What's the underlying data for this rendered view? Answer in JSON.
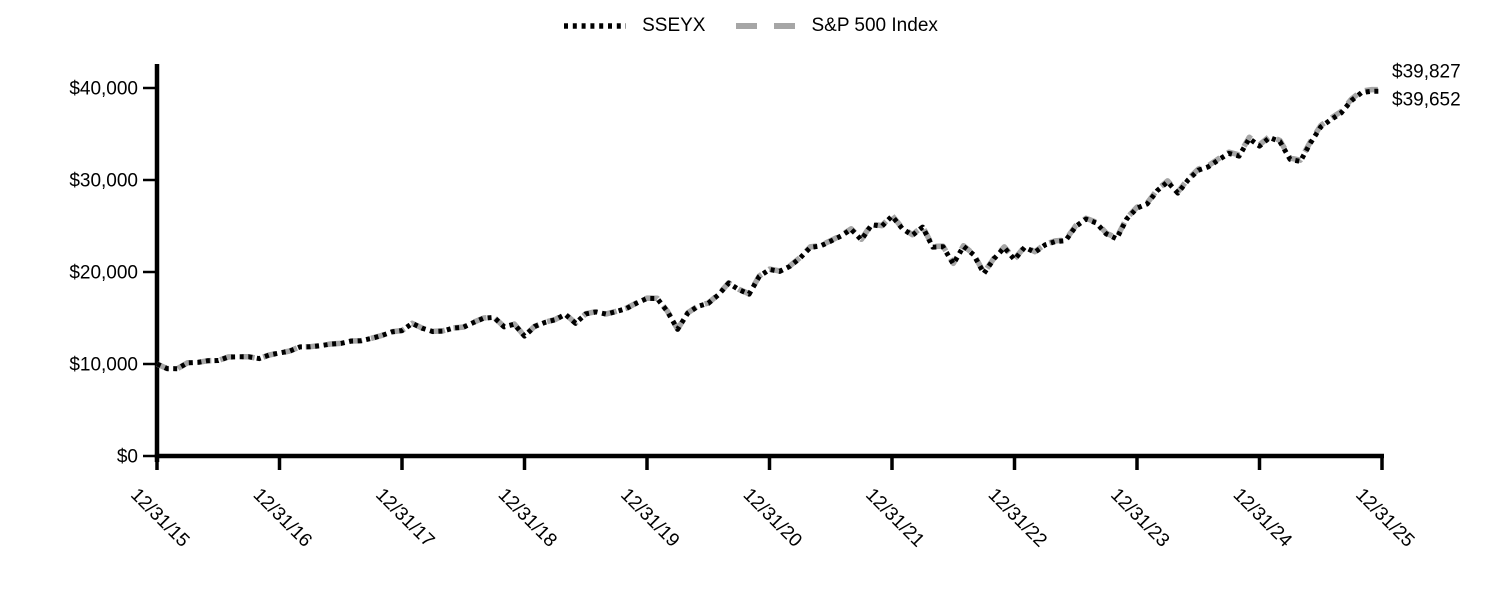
{
  "chart_data": {
    "type": "line",
    "title": "",
    "xlabel": "",
    "ylabel": "",
    "grid": false,
    "legend_position": "top-center",
    "x_unit": "monthly points from 12/31/15 to 12/31/25",
    "ylim": [
      0,
      40000
    ],
    "y_ticks": [
      0,
      10000,
      20000,
      30000,
      40000
    ],
    "y_tick_labels": [
      "$0",
      "$10,000",
      "$20,000",
      "$30,000",
      "$40,000"
    ],
    "x_tick_labels": [
      "12/31/15",
      "12/31/16",
      "12/31/17",
      "12/31/18",
      "12/31/19",
      "12/31/20",
      "12/31/21",
      "12/31/22",
      "12/31/23",
      "12/31/24",
      "12/31/25"
    ],
    "axis_color": "#000000",
    "series": [
      {
        "name": "SSEYX",
        "color": "#000000",
        "style": "dotted",
        "final_value": 39652,
        "final_value_label": "$39,652",
        "values": [
          10000,
          9504,
          9491,
          10134,
          10174,
          10356,
          10383,
          10765,
          10780,
          10781,
          10585,
          10977,
          11193,
          11406,
          11858,
          11871,
          11993,
          12161,
          12239,
          12490,
          12529,
          12786,
          13083,
          13485,
          13634,
          14415,
          13883,
          13530,
          13580,
          13907,
          13993,
          14513,
          14985,
          15070,
          14039,
          14325,
          13031,
          14074,
          14525,
          14806,
          15405,
          14426,
          15443,
          15665,
          15417,
          15705,
          16045,
          16626,
          17128,
          17120,
          15711,
          13770,
          15535,
          16274,
          16597,
          17533,
          18792,
          18078,
          17597,
          19523,
          20271,
          20066,
          20619,
          21521,
          22670,
          22828,
          23358,
          23913,
          24640,
          23493,
          25138,
          24964,
          26081,
          24732,
          23992,
          24881,
          22711,
          22751,
          20873,
          22797,
          21866,
          19851,
          21458,
          22657,
          21351,
          22691,
          22137,
          22949,
          23306,
          23406,
          24952,
          25752,
          25341,
          24132,
          23624,
          25780,
          26950,
          27401,
          28864,
          29793,
          28576,
          29992,
          31067,
          31445,
          32208,
          32896,
          32596,
          34508,
          33685,
          34620,
          34169,
          32244,
          32024,
          34038,
          35769,
          36569,
          37292,
          38629,
          39505,
          39650,
          39652
        ]
      },
      {
        "name": "S&P 500 Index",
        "color": "#a6a6a6",
        "style": "dashed",
        "final_value": 39827,
        "final_value_label": "$39,827",
        "values": [
          10000,
          9504,
          9492,
          10135,
          10175,
          10358,
          10385,
          10768,
          10783,
          10785,
          10589,
          10981,
          11198,
          11411,
          11864,
          11878,
          12000,
          12169,
          12247,
          12499,
          12538,
          12796,
          13094,
          13496,
          13646,
          14428,
          13896,
          13543,
          13594,
          13922,
          14008,
          14529,
          15003,
          15088,
          14056,
          14343,
          13048,
          14093,
          14545,
          14827,
          15428,
          14448,
          15467,
          15690,
          15442,
          15731,
          16072,
          16655,
          17158,
          17151,
          15740,
          13796,
          15565,
          16306,
          16630,
          17568,
          18831,
          18116,
          17634,
          19565,
          20316,
          20111,
          20666,
          21571,
          22723,
          22882,
          23415,
          23972,
          24701,
          23552,
          25203,
          25029,
          26150,
          24798,
          24057,
          24949,
          22774,
          22815,
          20933,
          22863,
          21930,
          19910,
          21523,
          22726,
          21417,
          22762,
          22207,
          23022,
          23381,
          23482,
          25034,
          25838,
          25427,
          24214,
          23706,
          25870,
          27045,
          27499,
          28968,
          29901,
          28681,
          30103,
          31184,
          31564,
          32331,
          33023,
          32723,
          34644,
          33819,
          34759,
          34307,
          32376,
          32156,
          34179,
          35919,
          36724,
          37451,
          38795,
          39676,
          39823,
          39827
        ]
      }
    ]
  }
}
